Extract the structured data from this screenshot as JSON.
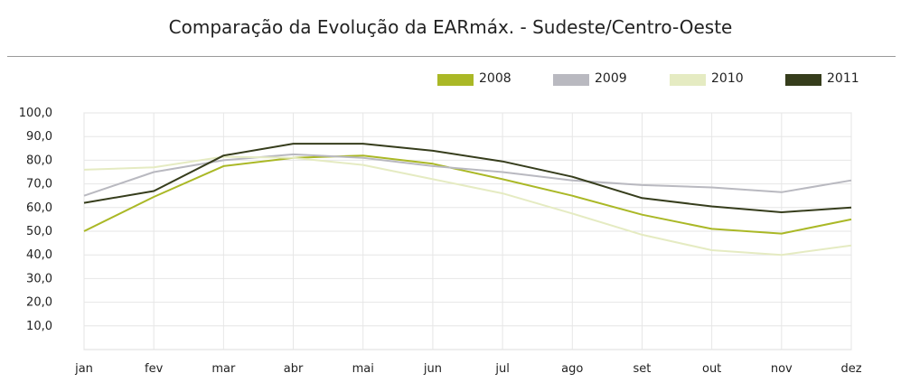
{
  "chart_data": {
    "type": "line",
    "title": "Comparação da Evolução da EARmáx. - Sudeste/Centro-Oeste",
    "xlabel": "",
    "ylabel": "",
    "categories": [
      "jan",
      "fev",
      "mar",
      "abr",
      "mai",
      "jun",
      "jul",
      "ago",
      "set",
      "out",
      "nov",
      "dez"
    ],
    "ylim": [
      0,
      100
    ],
    "yticks": [
      "10,0",
      "20,0",
      "30,0",
      "40,0",
      "50,0",
      "60,0",
      "70,0",
      "80,0",
      "90,0",
      "100,0"
    ],
    "grid": true,
    "legend_position": "top-right",
    "series": [
      {
        "name": "2008",
        "color": "#aab826",
        "values": [
          50.0,
          64.5,
          77.5,
          81.0,
          82.0,
          78.5,
          72.0,
          65.0,
          57.0,
          51.0,
          49.0,
          55.0
        ]
      },
      {
        "name": "2009",
        "color": "#b9b9c0",
        "values": [
          65.0,
          75.0,
          80.0,
          82.5,
          81.0,
          77.5,
          75.0,
          71.5,
          69.5,
          68.5,
          66.5,
          71.5
        ]
      },
      {
        "name": "2010",
        "color": "#e5ebc2",
        "values": [
          76.0,
          77.0,
          81.5,
          81.0,
          78.0,
          72.0,
          66.0,
          57.5,
          48.5,
          42.0,
          40.0,
          44.0
        ]
      },
      {
        "name": "2011",
        "color": "#363d1c",
        "values": [
          62.0,
          67.0,
          82.0,
          87.0,
          87.0,
          84.0,
          79.5,
          73.0,
          64.0,
          60.5,
          58.0,
          60.0
        ]
      }
    ]
  }
}
